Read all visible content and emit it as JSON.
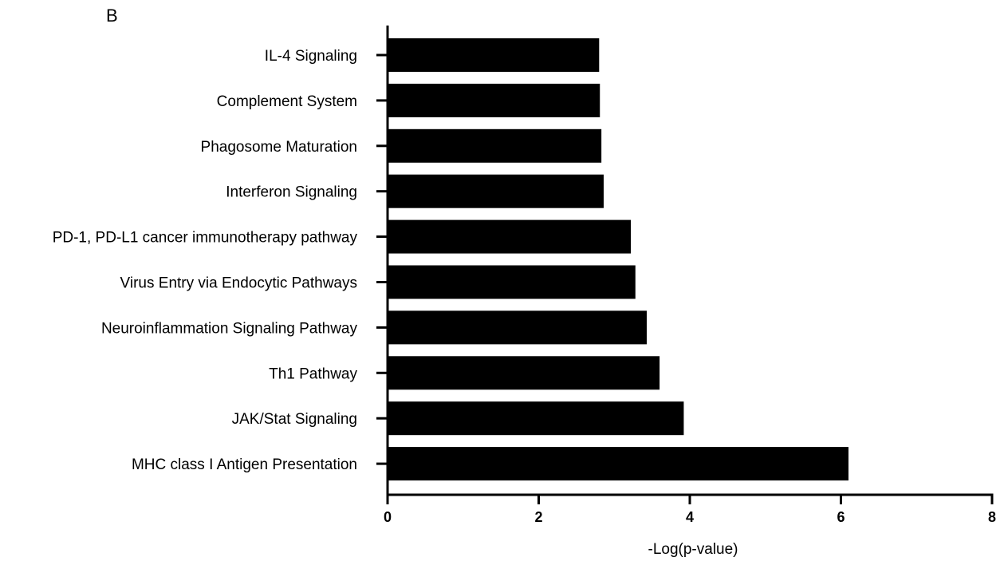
{
  "panel_label": "B",
  "colors": {
    "bar": "#000000",
    "axis": "#000000",
    "background": "#ffffff"
  },
  "chart_data": {
    "type": "bar",
    "orientation": "horizontal",
    "categories": [
      "IL-4 Signaling",
      "Complement System",
      "Phagosome Maturation",
      "Interferon Signaling",
      "PD-1, PD-L1 cancer immunotherapy pathway",
      "Virus Entry via Endocytic Pathways",
      "Neuroinflammation Signaling Pathway",
      "Th1 Pathway",
      "JAK/Stat Signaling",
      "MHC class I Antigen Presentation"
    ],
    "values": [
      2.8,
      2.81,
      2.83,
      2.86,
      3.22,
      3.28,
      3.43,
      3.6,
      3.92,
      6.1
    ],
    "xlabel": "-Log(p-value)",
    "ylabel": "",
    "xlim": [
      0,
      8
    ],
    "xticks": [
      0,
      2,
      4,
      6,
      8
    ],
    "grid": false,
    "legend": "none"
  }
}
